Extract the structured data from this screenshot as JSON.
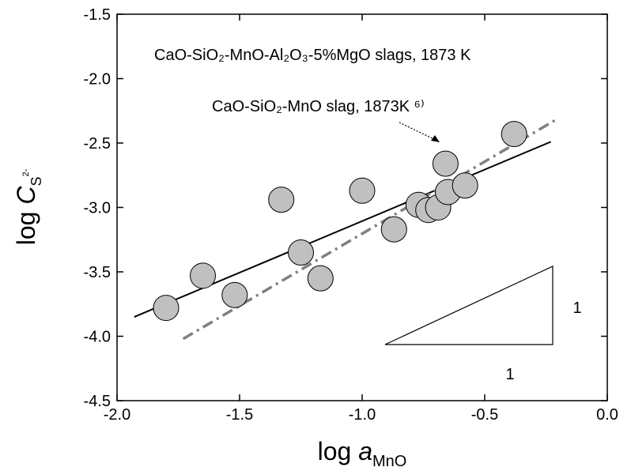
{
  "chart_data": {
    "type": "scatter",
    "xlabel": [
      "log ",
      "a",
      "MnO"
    ],
    "ylabel": [
      "log ",
      "C",
      "S",
      "2-"
    ],
    "xlim": [
      -2.0,
      0.0
    ],
    "ylim": [
      -4.5,
      -1.5
    ],
    "xticks": [
      {
        "value": -2.0,
        "label": "-2.0"
      },
      -1.5,
      {
        "value": -1.0,
        "label": "-1.0"
      },
      -0.5,
      {
        "value": 0.0,
        "label": "0.0"
      }
    ],
    "yticks": [
      -1.5,
      {
        "value": -2.0,
        "label": "-2.0"
      },
      -2.5,
      {
        "value": -3.0,
        "label": "-3.0"
      },
      -3.5,
      {
        "value": -4.0,
        "label": "-4.0"
      },
      -4.5
    ],
    "series": [
      {
        "type": "scatter",
        "color": "#c0c0c0",
        "x": [
          -1.8,
          -1.65,
          -1.52,
          -1.33,
          -1.25,
          -1.17,
          -1.0,
          -0.87,
          -0.77,
          -0.73,
          -0.69,
          -0.66,
          -0.65,
          -0.58,
          -0.38
        ],
        "values": [
          -3.78,
          -3.53,
          -3.68,
          -2.94,
          -3.35,
          -3.55,
          -2.87,
          -3.17,
          -2.98,
          -3.02,
          -3.0,
          -2.66,
          -2.88,
          -2.83,
          -2.43
        ]
      },
      {
        "type": "line",
        "color": "#000000",
        "x": [
          -1.93,
          -0.23
        ],
        "values": [
          -3.85,
          -2.49
        ]
      },
      {
        "type": "dashdot",
        "color": "#808080",
        "x": [
          -1.73,
          -0.21
        ],
        "values": [
          -4.02,
          -2.32
        ]
      }
    ],
    "annotations": [
      "CaO-SiO₂-MnO-Al₂O₃-5%MgO slags, 1873 K",
      "CaO-SiO₂-MnO slag, 1873K ⁶⁾",
      "1",
      "1"
    ]
  }
}
